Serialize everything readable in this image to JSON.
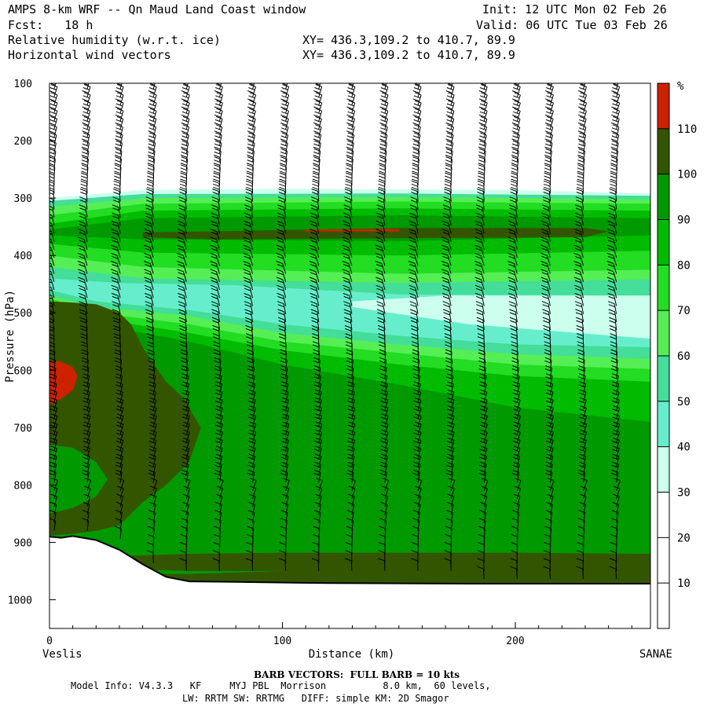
{
  "header": {
    "title": "AMPS 8-km WRF -- Qn Maud Land Coast window",
    "init": "Init: 12 UTC Mon 02 Feb 26",
    "fcst": "Fcst:   18 h",
    "valid": "Valid: 06 UTC Tue 03 Feb 26",
    "field1": "Relative humidity (w.r.t. ice)",
    "field2": "Horizontal wind vectors",
    "xy1": "XY= 436.3,109.2 to 410.7, 89.9",
    "xy2": "XY= 436.3,109.2 to 410.7, 89.9"
  },
  "footer": {
    "barb_note": "BARB VECTORS:  FULL BARB = 10 kts",
    "model_info": "Model Info: V4.3.3   KF     MYJ PBL  Morrison          8.0 km,  60 levels,",
    "physics": "LW: RRTM SW: RRTMG   DIFF: simple KM: 2D Smagor"
  },
  "chart_data": {
    "type": "heatmap",
    "title": "Relative humidity (w.r.t. ice)",
    "xlabel": "Distance (km)",
    "ylabel": "Pressure (hPa)",
    "x_start_label": "Veslis",
    "x_end_label": "SANAE",
    "xlim": [
      0,
      258
    ],
    "ylim": [
      100,
      1050
    ],
    "x_ticks": [
      0,
      100,
      200
    ],
    "y_ticks": [
      100,
      200,
      300,
      400,
      500,
      600,
      700,
      800,
      900,
      1000
    ],
    "colorbar": {
      "unit": "%",
      "levels": [
        10,
        20,
        30,
        40,
        50,
        60,
        70,
        80,
        90,
        100,
        110
      ],
      "colors": [
        "#ffffff",
        "#ffffff",
        "#ccffee",
        "#66eecc",
        "#44dd99",
        "#55ee55",
        "#22dd22",
        "#00bb00",
        "#009900",
        "#335500",
        "#cc2200"
      ]
    },
    "terrain": [
      [
        0,
        890
      ],
      [
        5,
        892
      ],
      [
        10,
        889
      ],
      [
        20,
        896
      ],
      [
        30,
        913
      ],
      [
        40,
        938
      ],
      [
        50,
        960
      ],
      [
        60,
        968
      ],
      [
        80,
        969
      ],
      [
        120,
        971
      ],
      [
        180,
        972
      ],
      [
        258,
        972
      ]
    ],
    "bands": [
      {
        "level": 30,
        "upper": [
          [
            0,
            300
          ],
          [
            40,
            286
          ],
          [
            100,
            284
          ],
          [
            200,
            286
          ],
          [
            258,
            292
          ]
        ],
        "lower": [
          [
            0,
            1050
          ],
          [
            258,
            1050
          ]
        ]
      },
      {
        "level": 50,
        "upper": [
          [
            0,
            305
          ],
          [
            40,
            293
          ],
          [
            150,
            292
          ],
          [
            258,
            296
          ]
        ],
        "lower": [
          [
            0,
            1050
          ],
          [
            258,
            1050
          ]
        ]
      },
      {
        "level": 60,
        "upper": [
          [
            0,
            315
          ],
          [
            40,
            300
          ],
          [
            150,
            298
          ],
          [
            258,
            302
          ]
        ],
        "lower": [
          [
            0,
            1050
          ],
          [
            258,
            1050
          ]
        ]
      },
      {
        "level": 70,
        "upper": [
          [
            0,
            330
          ],
          [
            40,
            310
          ],
          [
            150,
            306
          ],
          [
            258,
            310
          ]
        ],
        "lower": [
          [
            0,
            1050
          ],
          [
            258,
            1050
          ]
        ]
      },
      {
        "level": 80,
        "upper": [
          [
            0,
            345
          ],
          [
            40,
            322
          ],
          [
            150,
            318
          ],
          [
            258,
            322
          ]
        ],
        "lower": [
          [
            0,
            1050
          ],
          [
            258,
            1050
          ]
        ]
      },
      {
        "level": 90,
        "upper": [
          [
            0,
            355
          ],
          [
            40,
            335
          ],
          [
            150,
            330
          ],
          [
            258,
            335
          ]
        ],
        "lower": [
          [
            0,
            1050
          ],
          [
            258,
            1050
          ]
        ]
      },
      {
        "level": 80,
        "upper": [
          [
            0,
            365
          ],
          [
            40,
            372
          ],
          [
            150,
            375
          ],
          [
            258,
            365
          ]
        ],
        "lower": [
          [
            0,
            1050
          ],
          [
            258,
            1050
          ]
        ]
      },
      {
        "level": 70,
        "upper": [
          [
            0,
            380
          ],
          [
            40,
            395
          ],
          [
            150,
            400
          ],
          [
            258,
            392
          ]
        ],
        "lower": [
          [
            0,
            1050
          ],
          [
            258,
            1050
          ]
        ]
      },
      {
        "level": 60,
        "upper": [
          [
            0,
            400
          ],
          [
            40,
            420
          ],
          [
            150,
            432
          ],
          [
            258,
            425
          ]
        ],
        "lower": [
          [
            0,
            1050
          ],
          [
            258,
            1050
          ]
        ]
      },
      {
        "level": 50,
        "upper": [
          [
            0,
            420
          ],
          [
            40,
            440
          ],
          [
            150,
            448
          ],
          [
            258,
            442
          ]
        ],
        "lower": [
          [
            0,
            1050
          ],
          [
            258,
            1050
          ]
        ]
      },
      {
        "level": 40,
        "upper": [
          [
            0,
            440
          ],
          [
            30,
            448
          ],
          [
            80,
            452
          ],
          [
            150,
            468
          ],
          [
            258,
            470
          ]
        ],
        "lower": [
          [
            0,
            1050
          ],
          [
            258,
            1050
          ]
        ]
      },
      {
        "level": 30,
        "upper": [
          [
            130,
            480
          ],
          [
            170,
            470
          ],
          [
            258,
            470
          ]
        ],
        "lower": [
          [
            130,
            490
          ],
          [
            180,
            520
          ],
          [
            258,
            545
          ]
        ]
      },
      {
        "level": 40,
        "upper": [
          [
            0,
            1050
          ],
          [
            258,
            1050
          ]
        ],
        "lower": [
          [
            0,
            1050
          ],
          [
            258,
            1050
          ]
        ]
      },
      {
        "level": 50,
        "upper": [
          [
            0,
            460
          ],
          [
            20,
            480
          ],
          [
            60,
            495
          ],
          [
            100,
            520
          ],
          [
            150,
            540
          ],
          [
            200,
            555
          ],
          [
            258,
            560
          ]
        ],
        "lower": [
          [
            0,
            1050
          ],
          [
            258,
            1050
          ]
        ]
      },
      {
        "level": 60,
        "upper": [
          [
            0,
            470
          ],
          [
            20,
            490
          ],
          [
            60,
            505
          ],
          [
            100,
            535
          ],
          [
            150,
            555
          ],
          [
            200,
            572
          ],
          [
            258,
            580
          ]
        ],
        "lower": [
          [
            0,
            1050
          ],
          [
            258,
            1050
          ]
        ]
      },
      {
        "level": 70,
        "upper": [
          [
            0,
            475
          ],
          [
            20,
            500
          ],
          [
            60,
            520
          ],
          [
            100,
            550
          ],
          [
            150,
            570
          ],
          [
            200,
            590
          ],
          [
            258,
            598
          ]
        ],
        "lower": [
          [
            0,
            1050
          ],
          [
            258,
            1050
          ]
        ]
      },
      {
        "level": 80,
        "upper": [
          [
            0,
            480
          ],
          [
            20,
            510
          ],
          [
            60,
            535
          ],
          [
            100,
            565
          ],
          [
            150,
            590
          ],
          [
            200,
            610
          ],
          [
            258,
            620
          ]
        ],
        "lower": [
          [
            0,
            1050
          ],
          [
            258,
            1050
          ]
        ]
      },
      {
        "level": 90,
        "upper": [
          [
            0,
            490
          ],
          [
            20,
            520
          ],
          [
            60,
            550
          ],
          [
            100,
            590
          ],
          [
            150,
            625
          ],
          [
            200,
            665
          ],
          [
            258,
            690
          ]
        ],
        "lower": [
          [
            0,
            1050
          ],
          [
            258,
            1050
          ]
        ]
      },
      {
        "level": 100,
        "upper": [
          [
            0,
            480
          ],
          [
            10,
            482
          ],
          [
            20,
            485
          ],
          [
            30,
            500
          ],
          [
            35,
            520
          ],
          [
            40,
            560
          ],
          [
            45,
            590
          ],
          [
            50,
            620
          ],
          [
            58,
            650
          ],
          [
            62,
            680
          ],
          [
            65,
            700
          ],
          [
            60,
            760
          ],
          [
            50,
            800
          ],
          [
            40,
            830
          ],
          [
            35,
            850
          ],
          [
            30,
            870
          ],
          [
            20,
            880
          ],
          [
            10,
            885
          ],
          [
            0,
            888
          ]
        ],
        "lower": []
      },
      {
        "level": 100,
        "upper": [
          [
            0,
            920
          ],
          [
            20,
            925
          ],
          [
            60,
            920
          ],
          [
            100,
            918
          ],
          [
            150,
            918
          ],
          [
            200,
            918
          ],
          [
            258,
            920
          ]
        ],
        "lower": [
          [
            0,
            1050
          ],
          [
            258,
            1050
          ]
        ]
      }
    ],
    "blobs": [
      {
        "level": 110,
        "points": [
          [
            0,
            585
          ],
          [
            5,
            585
          ],
          [
            10,
            595
          ],
          [
            12,
            610
          ],
          [
            10,
            635
          ],
          [
            5,
            650
          ],
          [
            0,
            660
          ]
        ]
      },
      {
        "level": 90,
        "points": [
          [
            0,
            730
          ],
          [
            10,
            735
          ],
          [
            20,
            760
          ],
          [
            25,
            790
          ],
          [
            20,
            820
          ],
          [
            10,
            840
          ],
          [
            0,
            850
          ]
        ]
      },
      {
        "level": 90,
        "points": [
          [
            40,
            855
          ],
          [
            55,
            860
          ],
          [
            65,
            870
          ],
          [
            50,
            880
          ],
          [
            40,
            870
          ]
        ]
      },
      {
        "level": 90,
        "points": [
          [
            20,
            945
          ],
          [
            60,
            950
          ],
          [
            100,
            950
          ],
          [
            60,
            955
          ],
          [
            20,
            955
          ]
        ]
      },
      {
        "level": 100,
        "points": [
          [
            40,
            360
          ],
          [
            70,
            358
          ],
          [
            150,
            352
          ],
          [
            230,
            352
          ],
          [
            240,
            358
          ],
          [
            230,
            368
          ],
          [
            150,
            370
          ],
          [
            70,
            372
          ],
          [
            40,
            368
          ]
        ]
      },
      {
        "level": 110,
        "points": [
          [
            110,
            355
          ],
          [
            150,
            354
          ],
          [
            150,
            358
          ],
          [
            110,
            358
          ]
        ]
      }
    ]
  }
}
